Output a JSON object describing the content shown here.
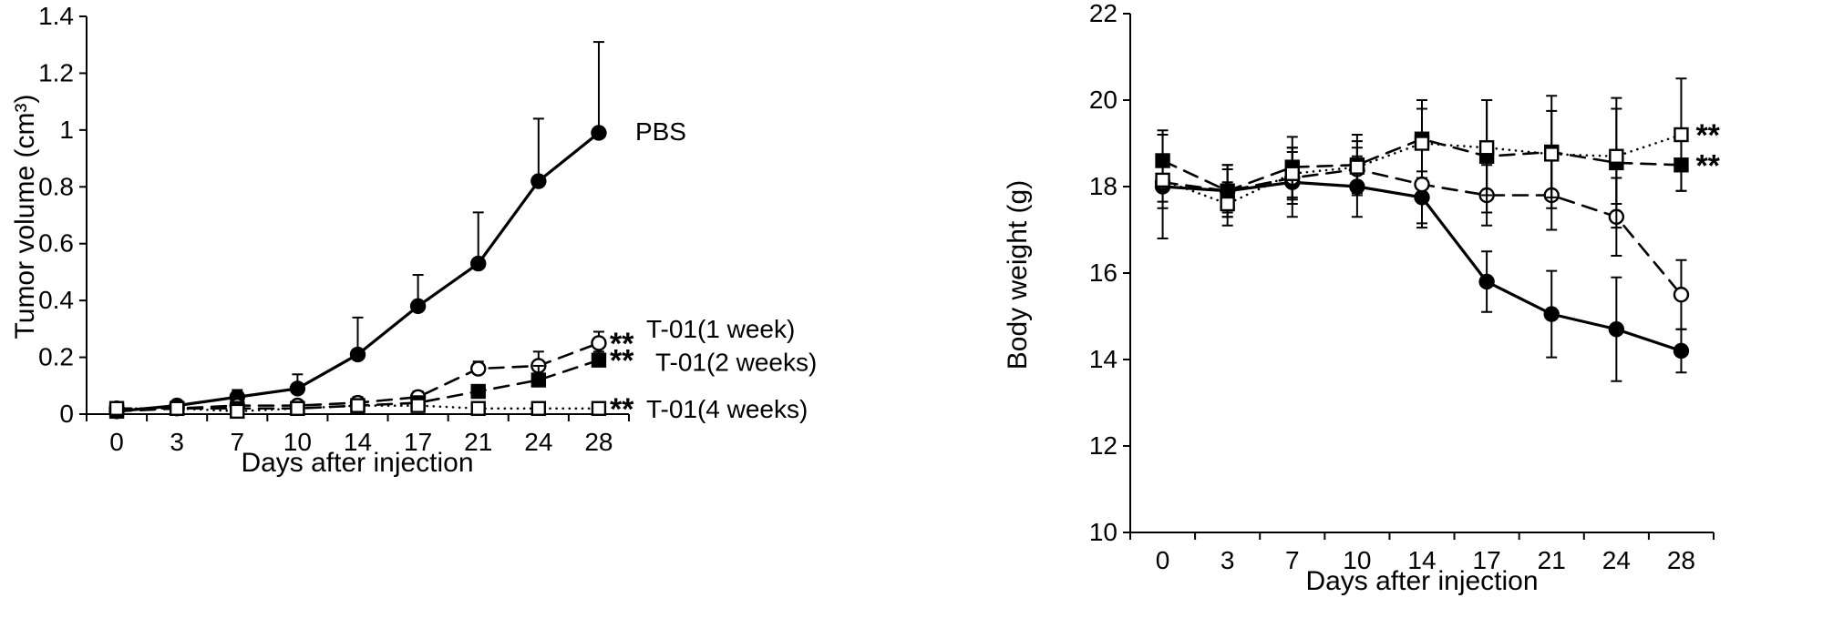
{
  "figure": {
    "background": "#ffffff",
    "ink_color": "#000000"
  },
  "chart_data": [
    {
      "id": "tumor-volume",
      "type": "line",
      "title": "",
      "xlabel": "Days after injection",
      "ylabel": "Tumor volume (cm³)",
      "x": [
        0,
        3,
        7,
        10,
        14,
        17,
        21,
        24,
        28
      ],
      "x_tick_labels": [
        "0",
        "3",
        "7",
        "10",
        "14",
        "17",
        "21",
        "24",
        "28"
      ],
      "y_ticks": [
        0,
        0.2,
        0.4,
        0.6,
        0.8,
        1.0,
        1.2,
        1.4
      ],
      "y_tick_labels": [
        "0",
        "0.2",
        "0.4",
        "0.6",
        "0.8",
        "1",
        "1.2",
        "1.4"
      ],
      "ylim": [
        0,
        1.4
      ],
      "grid": false,
      "legend_position": "end-of-line-labels",
      "error_bars": "up",
      "series": [
        {
          "name": "PBS",
          "marker": "circle-filled",
          "line_style": "solid",
          "color": "#000000",
          "show_name": true,
          "annotation": "",
          "values": [
            0.01,
            0.03,
            0.06,
            0.09,
            0.21,
            0.38,
            0.53,
            0.82,
            0.99
          ],
          "errors": [
            0.01,
            0.015,
            0.025,
            0.05,
            0.13,
            0.11,
            0.18,
            0.22,
            0.32
          ]
        },
        {
          "name": "T-01(1 week)",
          "marker": "circle-open",
          "line_style": "dashed",
          "color": "#000000",
          "show_name": true,
          "annotation": "**",
          "values": [
            0.02,
            0.02,
            0.03,
            0.03,
            0.04,
            0.06,
            0.16,
            0.17,
            0.25
          ],
          "errors": [
            0.01,
            0.005,
            0.01,
            0.01,
            0.02,
            0.02,
            0.025,
            0.05,
            0.04
          ]
        },
        {
          "name": "T-01(2 weeks)",
          "marker": "square-filled",
          "line_style": "dashed",
          "color": "#000000",
          "show_name": true,
          "annotation": "**",
          "values": [
            0.01,
            0.02,
            0.02,
            0.02,
            0.03,
            0.04,
            0.08,
            0.12,
            0.19
          ],
          "errors": [
            0.005,
            0.005,
            0.005,
            0.01,
            0.01,
            0.015,
            0.02,
            0.05,
            0.03
          ]
        },
        {
          "name": "T-01(4 weeks)",
          "marker": "square-open",
          "line_style": "dotted",
          "color": "#000000",
          "show_name": true,
          "annotation": "**",
          "values": [
            0.02,
            0.02,
            0.01,
            0.02,
            0.03,
            0.03,
            0.02,
            0.02,
            0.02
          ],
          "errors": [
            0.005,
            0.005,
            0.005,
            0.005,
            0.01,
            0.01,
            0.005,
            0.005,
            0.01
          ]
        }
      ]
    },
    {
      "id": "body-weight",
      "type": "line",
      "title": "",
      "xlabel": "Days after injection",
      "ylabel": "Body weight (g)",
      "x": [
        0,
        3,
        7,
        10,
        14,
        17,
        21,
        24,
        28
      ],
      "x_tick_labels": [
        "0",
        "3",
        "7",
        "10",
        "14",
        "17",
        "21",
        "24",
        "28"
      ],
      "y_ticks": [
        10,
        12,
        14,
        16,
        18,
        20,
        22
      ],
      "y_tick_labels": [
        "10",
        "12",
        "14",
        "16",
        "18",
        "20",
        "22"
      ],
      "ylim": [
        10,
        22
      ],
      "grid": false,
      "legend_position": "none",
      "error_bars": "symmetric",
      "series": [
        {
          "name": "PBS",
          "marker": "circle-filled",
          "line_style": "solid",
          "color": "#000000",
          "show_name": false,
          "annotation": "",
          "values": [
            18.0,
            17.9,
            18.1,
            18.0,
            17.75,
            15.8,
            15.05,
            14.7,
            14.2
          ],
          "errors": [
            1.2,
            0.6,
            0.8,
            0.7,
            0.6,
            0.7,
            1.0,
            1.2,
            0.5
          ]
        },
        {
          "name": "T-01(1 week)",
          "marker": "circle-open",
          "line_style": "dashed",
          "color": "#000000",
          "show_name": false,
          "annotation": "",
          "values": [
            18.1,
            17.9,
            18.2,
            18.4,
            18.05,
            17.8,
            17.8,
            17.3,
            15.5
          ],
          "errors": [
            0.6,
            0.5,
            0.6,
            0.5,
            1.0,
            0.7,
            0.8,
            0.9,
            0.8
          ]
        },
        {
          "name": "T-01(2 weeks)",
          "marker": "square-filled",
          "line_style": "dashed",
          "color": "#000000",
          "show_name": false,
          "annotation": "**",
          "values": [
            18.6,
            17.9,
            18.45,
            18.5,
            19.1,
            18.7,
            18.8,
            18.55,
            18.5
          ],
          "errors": [
            0.7,
            0.6,
            0.7,
            0.7,
            0.9,
            1.3,
            1.3,
            1.5,
            0.6
          ]
        },
        {
          "name": "T-01(4 weeks)",
          "marker": "square-open",
          "line_style": "dotted",
          "color": "#000000",
          "show_name": false,
          "annotation": "**",
          "values": [
            18.15,
            17.6,
            18.3,
            18.45,
            19.0,
            18.9,
            18.75,
            18.7,
            19.2
          ],
          "errors": [
            0.5,
            0.5,
            0.6,
            0.6,
            0.8,
            1.1,
            1.0,
            1.1,
            1.3
          ]
        }
      ]
    }
  ]
}
